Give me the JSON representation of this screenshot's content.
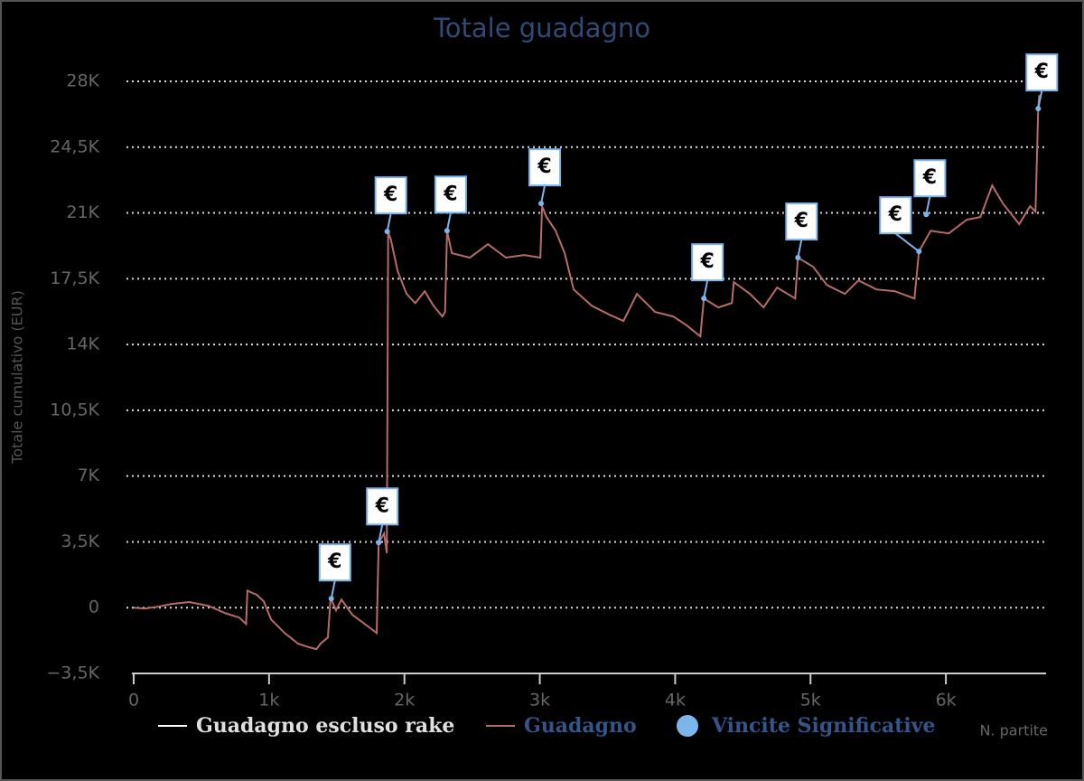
{
  "chart_data": {
    "type": "line",
    "title": "Totale guadagno",
    "y_label": "Totale cumulativo (EUR)",
    "x_label": "N. partite",
    "xlim": [
      0,
      6740
    ],
    "ylim": [
      -3500,
      28000
    ],
    "xticks": [
      0,
      {
        "value": 1000,
        "label": "1k"
      },
      {
        "value": 2000,
        "label": "2k"
      },
      {
        "value": 3000,
        "label": "3k"
      },
      {
        "value": 4000,
        "label": "4k"
      },
      {
        "value": 5000,
        "label": "5k"
      },
      {
        "value": 6000,
        "label": "6k"
      }
    ],
    "yticks": [
      {
        "value": -3500,
        "label": "−3,5K"
      },
      0,
      {
        "value": 3500,
        "label": "3,5K"
      },
      {
        "value": 7000,
        "label": "7K"
      },
      {
        "value": 10500,
        "label": "10,5K"
      },
      {
        "value": 14000,
        "label": "14K"
      },
      {
        "value": 17500,
        "label": "17,5K"
      },
      {
        "value": 21000,
        "label": "21K"
      },
      {
        "value": 24500,
        "label": "24,5K"
      },
      {
        "value": 28000,
        "label": "28K"
      }
    ],
    "grid": true,
    "series": [
      {
        "name": "Guadagno escluso rake",
        "color": "#ffffff",
        "x": [],
        "values": []
      },
      {
        "name": "Guadagno",
        "color": "#b86b6b",
        "x": [
          0,
          80,
          180,
          280,
          410,
          550,
          680,
          780,
          830,
          840,
          910,
          960,
          1015,
          1115,
          1215,
          1280,
          1350,
          1380,
          1435,
          1455,
          1495,
          1535,
          1615,
          1750,
          1795,
          1810,
          1850,
          1870,
          1880,
          1900,
          1950,
          2015,
          2080,
          2150,
          2215,
          2280,
          2300,
          2315,
          2350,
          2483,
          2617,
          2750,
          2884,
          3004,
          3017,
          3050,
          3117,
          3184,
          3250,
          3384,
          3517,
          3618,
          3718,
          3852,
          3985,
          4086,
          4186,
          4212,
          4319,
          4419,
          4433,
          4553,
          4653,
          4753,
          4887,
          4907,
          5020,
          5120,
          5254,
          5354,
          5487,
          5621,
          5768,
          5801,
          5888,
          6021,
          6155,
          6255,
          6342,
          6422,
          6542,
          6622,
          6662,
          6682,
          6689
        ],
        "values": [
          0,
          -50,
          50,
          200,
          300,
          100,
          -300,
          -530,
          -870,
          900,
          680,
          340,
          -630,
          -1350,
          -1920,
          -2070,
          -2210,
          -1920,
          -1590,
          530,
          -140,
          430,
          -380,
          -1100,
          -1350,
          3460,
          3940,
          2890,
          20000,
          19580,
          17900,
          16700,
          16200,
          16840,
          16060,
          15490,
          15730,
          20050,
          18860,
          18620,
          19340,
          18620,
          18760,
          18620,
          21360,
          20780,
          20050,
          18860,
          16930,
          16060,
          15580,
          15250,
          16690,
          15730,
          15490,
          15010,
          14430,
          16450,
          15970,
          16210,
          17320,
          16690,
          15970,
          17030,
          16450,
          18620,
          18130,
          17170,
          16690,
          17410,
          16930,
          16840,
          16450,
          18950,
          20050,
          19910,
          20640,
          20780,
          22460,
          21500,
          20400,
          21360,
          21070,
          26550,
          27270
        ]
      },
      {
        "name": "Vincite Significative",
        "color": "#7cb5ec",
        "flag_text": "€",
        "x": [
          1460,
          1810,
          1873,
          2315,
          3010,
          4212,
          4907,
          5801,
          5855,
          6682
        ],
        "values": [
          480,
          3460,
          20010,
          20050,
          21500,
          16450,
          18620,
          18950,
          20920,
          26550
        ]
      }
    ]
  }
}
